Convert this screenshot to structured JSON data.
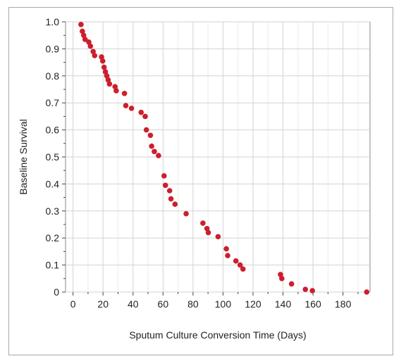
{
  "chart_data": {
    "type": "scatter",
    "xlabel": "Sputum Culture Conversion Time (Days)",
    "ylabel": "Baseline Survival",
    "xlim": [
      -5,
      198
    ],
    "ylim": [
      0,
      1.0
    ],
    "grid": true,
    "x_ticks": [
      "0",
      "20",
      "40",
      "60",
      "80",
      "100",
      "120",
      "140",
      "160",
      "180"
    ],
    "x_tick_values": [
      0,
      20,
      40,
      60,
      80,
      100,
      120,
      140,
      160,
      180
    ],
    "y_ticks": [
      "0",
      "0.1",
      "0.2",
      "0.3",
      "0.4",
      "0.5",
      "0.6",
      "0.7",
      "0.8",
      "0.9",
      "1.0"
    ],
    "y_tick_values": [
      0,
      0.1,
      0.2,
      0.3,
      0.4,
      0.5,
      0.6,
      0.7,
      0.8,
      0.9,
      1.0
    ],
    "point_color": "#cc1f2e",
    "points": [
      [
        5.3,
        0.99
      ],
      [
        6.2,
        0.965
      ],
      [
        7.1,
        0.95
      ],
      [
        8.0,
        0.935
      ],
      [
        10.5,
        0.925
      ],
      [
        11.6,
        0.91
      ],
      [
        13.4,
        0.89
      ],
      [
        14.4,
        0.875
      ],
      [
        19.0,
        0.87
      ],
      [
        19.8,
        0.855
      ],
      [
        20.7,
        0.832
      ],
      [
        21.6,
        0.815
      ],
      [
        22.5,
        0.8
      ],
      [
        23.4,
        0.785
      ],
      [
        24.3,
        0.77
      ],
      [
        28.0,
        0.76
      ],
      [
        28.8,
        0.745
      ],
      [
        34.3,
        0.735
      ],
      [
        35.2,
        0.69
      ],
      [
        39.0,
        0.68
      ],
      [
        45.4,
        0.665
      ],
      [
        48.1,
        0.65
      ],
      [
        48.9,
        0.6
      ],
      [
        51.6,
        0.58
      ],
      [
        52.4,
        0.54
      ],
      [
        54.2,
        0.52
      ],
      [
        57.0,
        0.505
      ],
      [
        60.7,
        0.43
      ],
      [
        61.6,
        0.395
      ],
      [
        64.4,
        0.375
      ],
      [
        65.3,
        0.345
      ],
      [
        68.0,
        0.325
      ],
      [
        75.4,
        0.29
      ],
      [
        86.6,
        0.255
      ],
      [
        89.3,
        0.235
      ],
      [
        90.2,
        0.22
      ],
      [
        96.7,
        0.205
      ],
      [
        102.2,
        0.16
      ],
      [
        103.1,
        0.135
      ],
      [
        108.6,
        0.115
      ],
      [
        111.4,
        0.1
      ],
      [
        113.3,
        0.085
      ],
      [
        138.3,
        0.065
      ],
      [
        139.2,
        0.05
      ],
      [
        145.7,
        0.03
      ],
      [
        154.9,
        0.01
      ],
      [
        159.6,
        0.005
      ],
      [
        195.8,
        0.0
      ]
    ]
  }
}
